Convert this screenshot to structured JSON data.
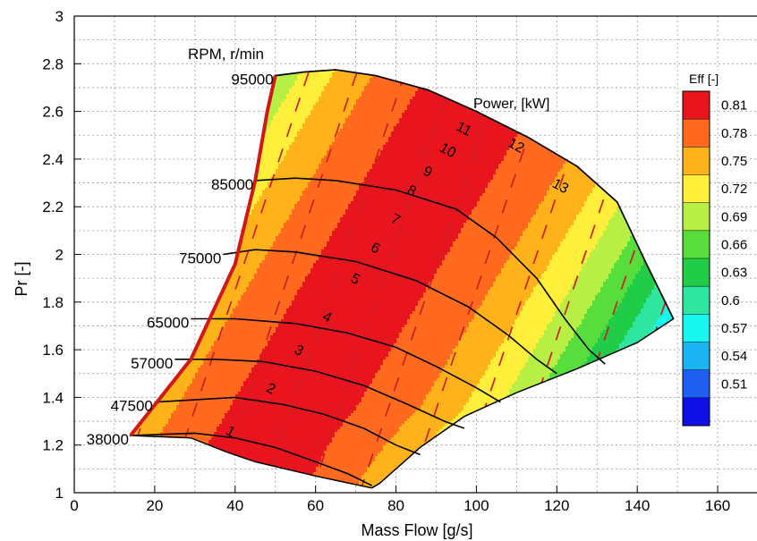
{
  "chart_data": {
    "type": "contour",
    "xlabel": "Mass Flow [g/s]",
    "ylabel": "Pr [-]",
    "xlim": [
      0,
      170
    ],
    "ylim": [
      1,
      3
    ],
    "x_ticks": [
      "0",
      "20",
      "40",
      "60",
      "80",
      "100",
      "120",
      "140",
      "160"
    ],
    "y_ticks": [
      "1",
      "1.2",
      "1.4",
      "1.6",
      "1.8",
      "2",
      "2.2",
      "2.4",
      "2.6",
      "2.8",
      "3"
    ],
    "grid": true,
    "contour_variable": "Eff [-]",
    "legend": {
      "title": "Eff [-]",
      "placement": "right",
      "levels": [
        "0.81",
        "0.78",
        "0.75",
        "0.72",
        "0.69",
        "0.66",
        "0.63",
        "0.6",
        "0.57",
        "0.54",
        "0.51"
      ],
      "colors": [
        "#e8141e",
        "#ff6a1e",
        "#ffb219",
        "#ffef3a",
        "#b7ef44",
        "#57de3c",
        "#20cc48",
        "#2ee6a0",
        "#18f6f0",
        "#1ab4f5",
        "#1f60f2",
        "#1010e6"
      ]
    },
    "map_boundary": [
      [
        14,
        1.24
      ],
      [
        29,
        1.56
      ],
      [
        40,
        1.96
      ],
      [
        45,
        2.31
      ],
      [
        48,
        2.6
      ],
      [
        50,
        2.75
      ],
      [
        57,
        2.765
      ],
      [
        65,
        2.775
      ],
      [
        75,
        2.75
      ],
      [
        88,
        2.69
      ],
      [
        100,
        2.6
      ],
      [
        113,
        2.49
      ],
      [
        125,
        2.37
      ],
      [
        135,
        2.22
      ],
      [
        142,
        1.97
      ],
      [
        149,
        1.73
      ],
      [
        140,
        1.63
      ],
      [
        125,
        1.52
      ],
      [
        110,
        1.42
      ],
      [
        97,
        1.32
      ],
      [
        86,
        1.19
      ],
      [
        76,
        1.04
      ],
      [
        74,
        1.02
      ],
      [
        60,
        1.07
      ],
      [
        45,
        1.13
      ],
      [
        38,
        1.17
      ],
      [
        29,
        1.23
      ],
      [
        14,
        1.24
      ]
    ],
    "surge_line": [
      [
        14,
        1.24
      ],
      [
        29,
        1.56
      ],
      [
        40,
        1.96
      ],
      [
        45,
        2.31
      ],
      [
        48,
        2.6
      ],
      [
        50,
        2.75
      ]
    ],
    "rpm_title": "RPM, r/min",
    "speed_lines": [
      {
        "label": "95000",
        "points": [
          [
            50,
            2.75
          ],
          [
            57,
            2.765
          ],
          [
            65,
            2.775
          ],
          [
            75,
            2.75
          ],
          [
            88,
            2.69
          ],
          [
            100,
            2.6
          ],
          [
            113,
            2.49
          ],
          [
            125,
            2.37
          ],
          [
            135,
            2.22
          ],
          [
            142,
            1.97
          ],
          [
            149,
            1.73
          ]
        ]
      },
      {
        "label": "85000",
        "points": [
          [
            45,
            2.31
          ],
          [
            55,
            2.32
          ],
          [
            65,
            2.31
          ],
          [
            80,
            2.27
          ],
          [
            95,
            2.19
          ],
          [
            105,
            2.07
          ],
          [
            115,
            1.9
          ],
          [
            122,
            1.73
          ],
          [
            128,
            1.6
          ],
          [
            132,
            1.54
          ]
        ]
      },
      {
        "label": "75000",
        "points": [
          [
            37,
            2.0
          ],
          [
            45,
            2.02
          ],
          [
            55,
            2.01
          ],
          [
            70,
            1.97
          ],
          [
            85,
            1.89
          ],
          [
            98,
            1.78
          ],
          [
            108,
            1.66
          ],
          [
            115,
            1.56
          ],
          [
            120,
            1.5
          ]
        ]
      },
      {
        "label": "65000",
        "points": [
          [
            29,
            1.73
          ],
          [
            40,
            1.73
          ],
          [
            55,
            1.71
          ],
          [
            68,
            1.67
          ],
          [
            80,
            1.61
          ],
          [
            90,
            1.53
          ],
          [
            100,
            1.44
          ],
          [
            106,
            1.38
          ]
        ]
      },
      {
        "label": "57000",
        "points": [
          [
            25,
            1.56
          ],
          [
            35,
            1.56
          ],
          [
            47,
            1.55
          ],
          [
            60,
            1.51
          ],
          [
            72,
            1.45
          ],
          [
            83,
            1.37
          ],
          [
            92,
            1.3
          ],
          [
            97,
            1.27
          ]
        ]
      },
      {
        "label": "47500",
        "points": [
          [
            20,
            1.38
          ],
          [
            30,
            1.39
          ],
          [
            40,
            1.4
          ],
          [
            52,
            1.37
          ],
          [
            62,
            1.33
          ],
          [
            72,
            1.27
          ],
          [
            80,
            1.2
          ],
          [
            86,
            1.16
          ]
        ]
      },
      {
        "label": "38000",
        "points": [
          [
            14,
            1.24
          ],
          [
            22,
            1.245
          ],
          [
            30,
            1.25
          ],
          [
            40,
            1.23
          ],
          [
            50,
            1.19
          ],
          [
            60,
            1.13
          ],
          [
            68,
            1.08
          ],
          [
            74,
            1.03
          ]
        ]
      }
    ],
    "power_title": "Power, [kW]",
    "power_labels": [
      {
        "label": "1",
        "x": 39,
        "y": 1.26
      },
      {
        "label": "2",
        "x": 49,
        "y": 1.44
      },
      {
        "label": "3",
        "x": 56,
        "y": 1.6
      },
      {
        "label": "4",
        "x": 63,
        "y": 1.74
      },
      {
        "label": "5",
        "x": 70,
        "y": 1.9
      },
      {
        "label": "6",
        "x": 75,
        "y": 2.03
      },
      {
        "label": "7",
        "x": 80,
        "y": 2.15
      },
      {
        "label": "8",
        "x": 84,
        "y": 2.27
      },
      {
        "label": "9",
        "x": 88,
        "y": 2.35
      },
      {
        "label": "10",
        "x": 93,
        "y": 2.44
      },
      {
        "label": "11",
        "x": 97,
        "y": 2.53
      },
      {
        "label": "12",
        "x": 110,
        "y": 2.46
      },
      {
        "label": "13",
        "x": 121,
        "y": 2.29
      }
    ]
  }
}
